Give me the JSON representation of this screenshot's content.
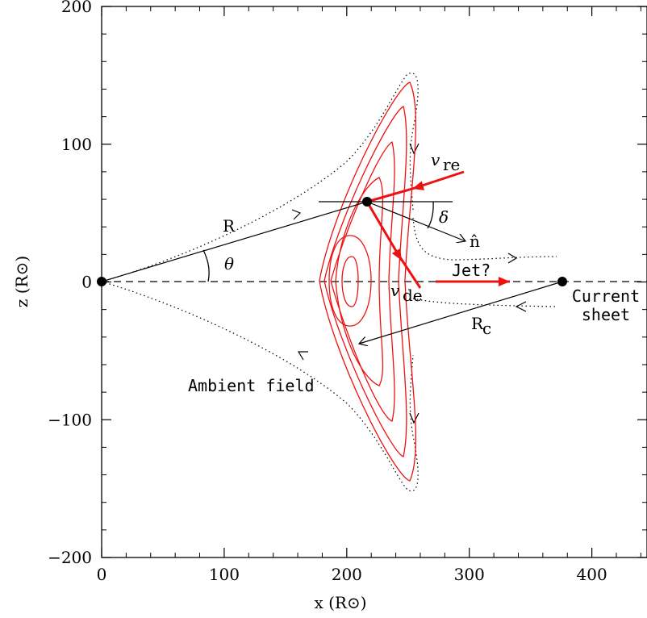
{
  "axes": {
    "x_title": "x (R⊙)",
    "y_title": "z (R⊙)",
    "x_ticks": [
      {
        "value": 0,
        "label": "0"
      },
      {
        "value": 100,
        "label": "100"
      },
      {
        "value": 200,
        "label": "200"
      },
      {
        "value": 300,
        "label": "300"
      },
      {
        "value": 400,
        "label": "400"
      }
    ],
    "y_ticks": [
      {
        "value": 200,
        "label": "200"
      },
      {
        "value": 100,
        "label": "100"
      },
      {
        "value": 0,
        "label": "0"
      },
      {
        "value": -100,
        "label": "−100"
      },
      {
        "value": -200,
        "label": "−200"
      }
    ],
    "xlim": [
      0,
      445
    ],
    "ylim": [
      -200,
      200
    ]
  },
  "labels": {
    "R": "R",
    "theta": "θ",
    "delta": "δ",
    "n_hat": "n̂",
    "v_re_main": "v",
    "v_re_sub": "re",
    "v_de_main": "v",
    "v_de_sub": "de",
    "jet": "Jet?",
    "Rc_main": "R",
    "Rc_sub": "c",
    "current_sheet_line1": "Current",
    "current_sheet_line2": "sheet",
    "ambient_field": "Ambient field"
  },
  "colors": {
    "contour": "#ee1111",
    "arrow_red": "#ee1111",
    "ink": "#000000"
  }
}
